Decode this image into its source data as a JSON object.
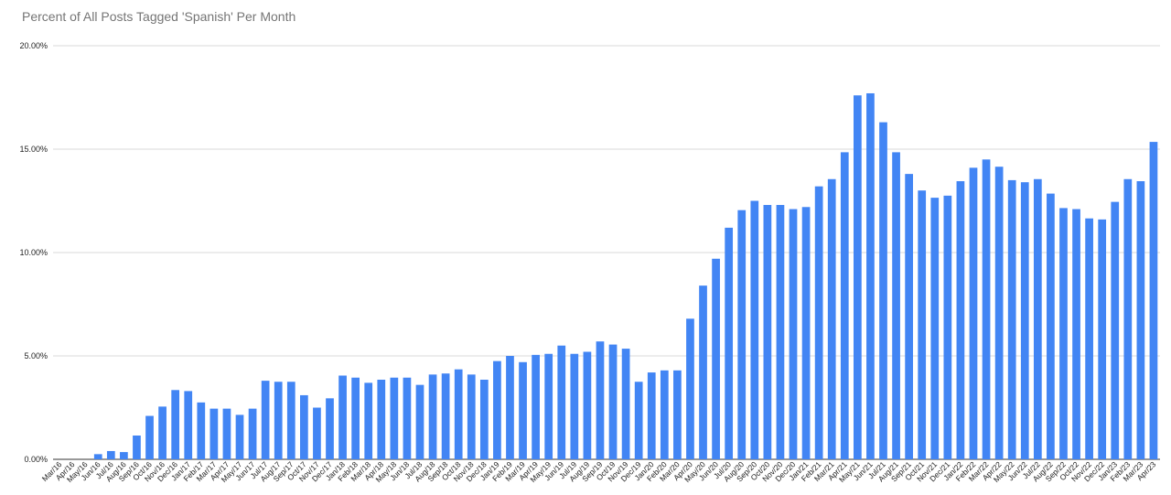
{
  "chart_data": {
    "type": "bar",
    "title": "Percent of All Posts Tagged 'Spanish' Per Month",
    "xlabel": "",
    "ylabel": "",
    "ylim": [
      0,
      20
    ],
    "yticks": [
      "0.00%",
      "5.00%",
      "10.00%",
      "15.00%",
      "20.00%"
    ],
    "ytick_values": [
      0,
      5,
      10,
      15,
      20
    ],
    "grid": true,
    "legend": "none",
    "bar_color": "#4285f4",
    "categories": [
      "Mar/16",
      "Apr/16",
      "May/16",
      "Jun/16",
      "Jul/16",
      "Aug/16",
      "Sep/16",
      "Oct/16",
      "Nov/16",
      "Dec/16",
      "Jan/17",
      "Feb/17",
      "Mar/17",
      "Apr/17",
      "May/17",
      "Jun/17",
      "Jul/17",
      "Aug/17",
      "Sep/17",
      "Oct/17",
      "Nov/17",
      "Dec/17",
      "Jan/18",
      "Feb/18",
      "Mar/18",
      "Apr/18",
      "May/18",
      "Jun/18",
      "Jul/18",
      "Aug/18",
      "Sep/18",
      "Oct/18",
      "Nov/18",
      "Dec/18",
      "Jan/19",
      "Feb/19",
      "Mar/19",
      "Apr/19",
      "May/19",
      "Jun/19",
      "Jul/19",
      "Aug/19",
      "Sep/19",
      "Oct/19",
      "Nov/19",
      "Dec/19",
      "Jan/20",
      "Feb/20",
      "Mar/20",
      "Apr/20",
      "May/20",
      "Jun/20",
      "Jul/20",
      "Aug/20",
      "Sep/20",
      "Oct/20",
      "Nov/20",
      "Dec/20",
      "Jan/21",
      "Feb/21",
      "Mar/21",
      "Apr/21",
      "May/21",
      "Jun/21",
      "Jul/21",
      "Aug/21",
      "Sep/21",
      "Oct/21",
      "Nov/21",
      "Dec/21",
      "Jan/22",
      "Feb/22",
      "Mar/22",
      "Apr/22",
      "May/22",
      "Jun/22",
      "Jul/22",
      "Aug/22",
      "Sep/22",
      "Oct/22",
      "Nov/22",
      "Dec/22",
      "Jan/23",
      "Feb/23",
      "Mar/23",
      "Apr/23"
    ],
    "values": [
      0,
      0,
      0,
      0.25,
      0.4,
      0.35,
      1.15,
      2.1,
      2.55,
      3.35,
      3.3,
      2.75,
      2.45,
      2.45,
      2.15,
      2.45,
      3.8,
      3.75,
      3.75,
      3.1,
      2.5,
      2.95,
      4.05,
      3.95,
      3.7,
      3.85,
      3.95,
      3.95,
      3.6,
      4.1,
      4.15,
      4.35,
      4.1,
      3.85,
      4.75,
      5.0,
      4.7,
      5.05,
      5.1,
      5.5,
      5.1,
      5.2,
      5.7,
      5.55,
      5.35,
      3.75,
      4.2,
      4.3,
      4.3,
      6.8,
      8.4,
      9.7,
      11.2,
      12.05,
      12.5,
      12.3,
      12.3,
      12.1,
      12.2,
      13.2,
      13.55,
      14.85,
      17.6,
      17.7,
      16.3,
      14.85,
      13.8,
      13.0,
      12.65,
      12.75,
      13.45,
      14.1,
      14.5,
      14.15,
      13.5,
      13.4,
      13.55,
      12.85,
      12.15,
      12.1,
      11.65,
      11.6,
      12.45,
      13.55,
      13.45,
      15.35
    ]
  }
}
